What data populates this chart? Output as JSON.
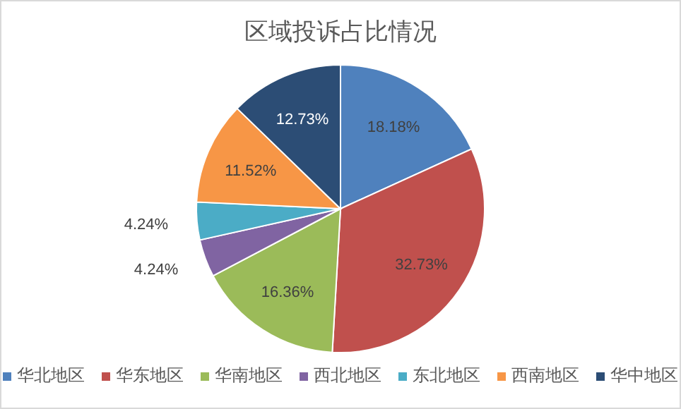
{
  "chart_data": {
    "type": "pie",
    "title": "区域投诉占比情况",
    "categories": [
      "华北地区",
      "华东地区",
      "华南地区",
      "西北地区",
      "东北地区",
      "西南地区",
      "华中地区"
    ],
    "values": [
      18.18,
      32.73,
      16.36,
      4.24,
      4.24,
      11.52,
      12.73
    ],
    "colors": [
      "#4f81bd",
      "#c0504d",
      "#9bbb59",
      "#8064a2",
      "#4bacc6",
      "#f79646",
      "#2c4d75"
    ],
    "value_labels": [
      "18.18%",
      "32.73%",
      "16.36%",
      "4.24%",
      "4.24%",
      "11.52%",
      "12.73%"
    ],
    "legend": "bottom"
  }
}
